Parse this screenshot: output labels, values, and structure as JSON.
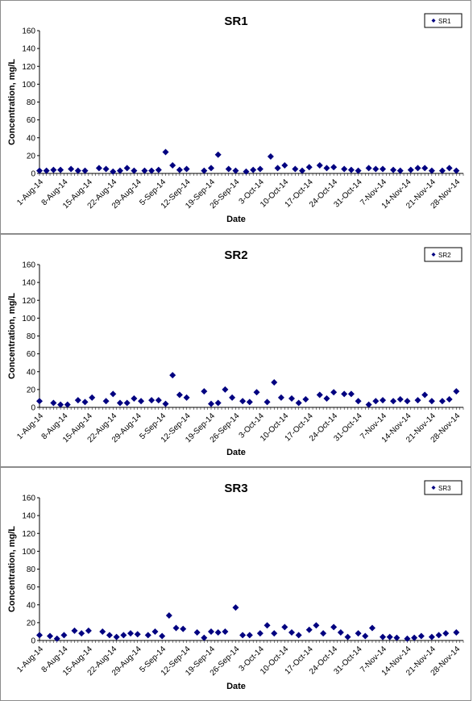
{
  "chart_data": [
    {
      "type": "scatter",
      "title": "SR1",
      "xlabel": "Date",
      "ylabel": "Concentration, mg/L",
      "ylim": [
        0,
        160
      ],
      "yticks": [
        "0",
        "20",
        "40",
        "60",
        "80",
        "100",
        "120",
        "140",
        "160"
      ],
      "xticks": [
        "1-Aug-14",
        "8-Aug-14",
        "15-Aug-14",
        "22-Aug-14",
        "29-Aug-14",
        "5-Sep-14",
        "12-Sep-14",
        "19-Sep-14",
        "26-Sep-14",
        "3-Oct-14",
        "10-Oct-14",
        "17-Oct-14",
        "24-Oct-14",
        "31-Oct-14",
        "7-Nov-14",
        "14-Nov-14",
        "21-Nov-14",
        "28-Nov-14"
      ],
      "xlim": [
        "2014-08-01",
        "2014-11-30"
      ],
      "legend": "top-right",
      "series": [
        {
          "name": "SR1",
          "color": "#000080",
          "x": [
            "2014-08-01",
            "2014-08-03",
            "2014-08-05",
            "2014-08-07",
            "2014-08-10",
            "2014-08-12",
            "2014-08-14",
            "2014-08-18",
            "2014-08-20",
            "2014-08-22",
            "2014-08-24",
            "2014-08-26",
            "2014-08-28",
            "2014-08-31",
            "2014-09-02",
            "2014-09-04",
            "2014-09-06",
            "2014-09-08",
            "2014-09-10",
            "2014-09-12",
            "2014-09-17",
            "2014-09-19",
            "2014-09-21",
            "2014-09-24",
            "2014-09-26",
            "2014-09-29",
            "2014-10-01",
            "2014-10-03",
            "2014-10-06",
            "2014-10-08",
            "2014-10-10",
            "2014-10-13",
            "2014-10-15",
            "2014-10-17",
            "2014-10-20",
            "2014-10-22",
            "2014-10-24",
            "2014-10-27",
            "2014-10-29",
            "2014-10-31",
            "2014-11-03",
            "2014-11-05",
            "2014-11-07",
            "2014-11-10",
            "2014-11-12",
            "2014-11-15",
            "2014-11-17",
            "2014-11-19",
            "2014-11-21",
            "2014-11-24",
            "2014-11-26",
            "2014-11-28"
          ],
          "y": [
            3,
            3,
            4,
            4,
            5,
            3,
            3,
            6,
            5,
            2,
            3,
            6,
            3,
            3,
            3,
            4,
            24,
            9,
            4,
            5,
            3,
            6,
            21,
            5,
            3,
            2,
            4,
            5,
            19,
            6,
            9,
            5,
            3,
            7,
            9,
            6,
            7,
            5,
            4,
            3,
            6,
            5,
            5,
            4,
            3,
            4,
            6,
            6,
            3,
            3,
            6,
            3
          ]
        }
      ]
    },
    {
      "type": "scatter",
      "title": "SR2",
      "xlabel": "Date",
      "ylabel": "Concentration, mg/L",
      "ylim": [
        0,
        160
      ],
      "yticks": [
        "0",
        "20",
        "40",
        "60",
        "80",
        "100",
        "120",
        "140",
        "160"
      ],
      "xticks": [
        "1-Aug-14",
        "8-Aug-14",
        "15-Aug-14",
        "22-Aug-14",
        "29-Aug-14",
        "5-Sep-14",
        "12-Sep-14",
        "19-Sep-14",
        "26-Sep-14",
        "3-Oct-14",
        "10-Oct-14",
        "17-Oct-14",
        "24-Oct-14",
        "31-Oct-14",
        "7-Nov-14",
        "14-Nov-14",
        "21-Nov-14",
        "28-Nov-14"
      ],
      "xlim": [
        "2014-08-01",
        "2014-11-30"
      ],
      "legend": "top-right",
      "series": [
        {
          "name": "SR2",
          "color": "#000080",
          "x": [
            "2014-08-01",
            "2014-08-05",
            "2014-08-07",
            "2014-08-09",
            "2014-08-12",
            "2014-08-14",
            "2014-08-16",
            "2014-08-20",
            "2014-08-22",
            "2014-08-24",
            "2014-08-26",
            "2014-08-28",
            "2014-08-30",
            "2014-09-02",
            "2014-09-04",
            "2014-09-06",
            "2014-09-08",
            "2014-09-10",
            "2014-09-12",
            "2014-09-17",
            "2014-09-19",
            "2014-09-21",
            "2014-09-23",
            "2014-09-25",
            "2014-09-28",
            "2014-09-30",
            "2014-10-02",
            "2014-10-05",
            "2014-10-07",
            "2014-10-09",
            "2014-10-12",
            "2014-10-14",
            "2014-10-16",
            "2014-10-20",
            "2014-10-22",
            "2014-10-24",
            "2014-10-27",
            "2014-10-29",
            "2014-10-31",
            "2014-11-03",
            "2014-11-05",
            "2014-11-07",
            "2014-11-10",
            "2014-11-12",
            "2014-11-14",
            "2014-11-17",
            "2014-11-19",
            "2014-11-21",
            "2014-11-24",
            "2014-11-26",
            "2014-11-28"
          ],
          "y": [
            7,
            5,
            3,
            3,
            8,
            6,
            11,
            7,
            15,
            5,
            5,
            10,
            7,
            8,
            8,
            4,
            36,
            14,
            11,
            18,
            4,
            5,
            20,
            11,
            7,
            6,
            17,
            6,
            28,
            11,
            10,
            5,
            9,
            14,
            10,
            17,
            15,
            15,
            7,
            3,
            7,
            8,
            7,
            9,
            7,
            8,
            14,
            7,
            7,
            9,
            18
          ]
        }
      ]
    },
    {
      "type": "scatter",
      "title": "SR3",
      "xlabel": "Date",
      "ylabel": "Concentration, mg/L",
      "ylim": [
        0,
        160
      ],
      "yticks": [
        "0",
        "20",
        "40",
        "60",
        "80",
        "100",
        "120",
        "140",
        "160"
      ],
      "xticks": [
        "1-Aug-14",
        "8-Aug-14",
        "15-Aug-14",
        "22-Aug-14",
        "29-Aug-14",
        "5-Sep-14",
        "12-Sep-14",
        "19-Sep-14",
        "26-Sep-14",
        "3-Oct-14",
        "10-Oct-14",
        "17-Oct-14",
        "24-Oct-14",
        "31-Oct-14",
        "7-Nov-14",
        "14-Nov-14",
        "21-Nov-14",
        "28-Nov-14"
      ],
      "xlim": [
        "2014-08-01",
        "2014-11-30"
      ],
      "legend": "top-right",
      "series": [
        {
          "name": "SR3",
          "color": "#000080",
          "x": [
            "2014-08-01",
            "2014-08-04",
            "2014-08-06",
            "2014-08-08",
            "2014-08-11",
            "2014-08-13",
            "2014-08-15",
            "2014-08-19",
            "2014-08-21",
            "2014-08-23",
            "2014-08-25",
            "2014-08-27",
            "2014-08-29",
            "2014-09-01",
            "2014-09-03",
            "2014-09-05",
            "2014-09-07",
            "2014-09-09",
            "2014-09-11",
            "2014-09-15",
            "2014-09-17",
            "2014-09-19",
            "2014-09-21",
            "2014-09-23",
            "2014-09-26",
            "2014-09-28",
            "2014-09-30",
            "2014-10-03",
            "2014-10-05",
            "2014-10-07",
            "2014-10-10",
            "2014-10-12",
            "2014-10-14",
            "2014-10-17",
            "2014-10-19",
            "2014-10-21",
            "2014-10-24",
            "2014-10-26",
            "2014-10-28",
            "2014-10-31",
            "2014-11-02",
            "2014-11-04",
            "2014-11-07",
            "2014-11-09",
            "2014-11-11",
            "2014-11-14",
            "2014-11-16",
            "2014-11-18",
            "2014-11-21",
            "2014-11-23",
            "2014-11-25",
            "2014-11-28"
          ],
          "y": [
            6,
            5,
            2,
            6,
            11,
            8,
            11,
            10,
            6,
            4,
            6,
            8,
            7,
            6,
            10,
            5,
            28,
            14,
            13,
            9,
            3,
            10,
            9,
            10,
            37,
            6,
            6,
            8,
            17,
            8,
            15,
            9,
            6,
            12,
            17,
            8,
            15,
            9,
            4,
            8,
            5,
            14,
            4,
            4,
            3,
            2,
            3,
            5,
            4,
            6,
            8,
            9
          ]
        }
      ]
    }
  ]
}
